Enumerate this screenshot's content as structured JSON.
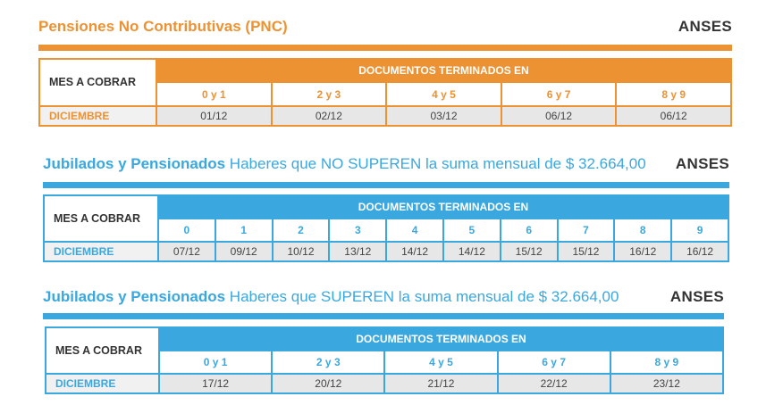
{
  "pnc": {
    "title": "Pensiones No Contributivas (PNC)",
    "brand": "ANSES",
    "mes_header": "MES A COBRAR",
    "doc_header": "DOCUMENTOS TERMINADOS EN",
    "groups": [
      "0 y 1",
      "2 y 3",
      "4 y 5",
      "6 y 7",
      "8 y 9"
    ],
    "month": "DICIEMBRE",
    "dates": [
      "01/12",
      "02/12",
      "03/12",
      "06/12",
      "06/12"
    ]
  },
  "jub_no_superen": {
    "title": "Jubilados y Pensionados",
    "subtitle": "Haberes que NO SUPEREN la suma mensual de $ 32.664,00",
    "brand": "ANSES",
    "mes_header": "MES A COBRAR",
    "doc_header": "DOCUMENTOS TERMINADOS EN",
    "groups": [
      "0",
      "1",
      "2",
      "3",
      "4",
      "5",
      "6",
      "7",
      "8",
      "9"
    ],
    "month": "DICIEMBRE",
    "dates": [
      "07/12",
      "09/12",
      "10/12",
      "13/12",
      "14/12",
      "14/12",
      "15/12",
      "15/12",
      "16/12",
      "16/12"
    ]
  },
  "jub_superen": {
    "title": "Jubilados y Pensionados",
    "subtitle": "Haberes que SUPEREN la suma mensual de $ 32.664,00",
    "brand": "ANSES",
    "mes_header": "MES A COBRAR",
    "doc_header": "DOCUMENTOS TERMINADOS EN",
    "groups": [
      "0 y 1",
      "2 y 3",
      "4 y 5",
      "6 y 7",
      "8 y 9"
    ],
    "month": "DICIEMBRE",
    "dates": [
      "17/12",
      "20/12",
      "21/12",
      "22/12",
      "23/12"
    ]
  },
  "colors": {
    "orange": "#ec9232",
    "blue": "#3aa8df",
    "dark": "#333333"
  }
}
